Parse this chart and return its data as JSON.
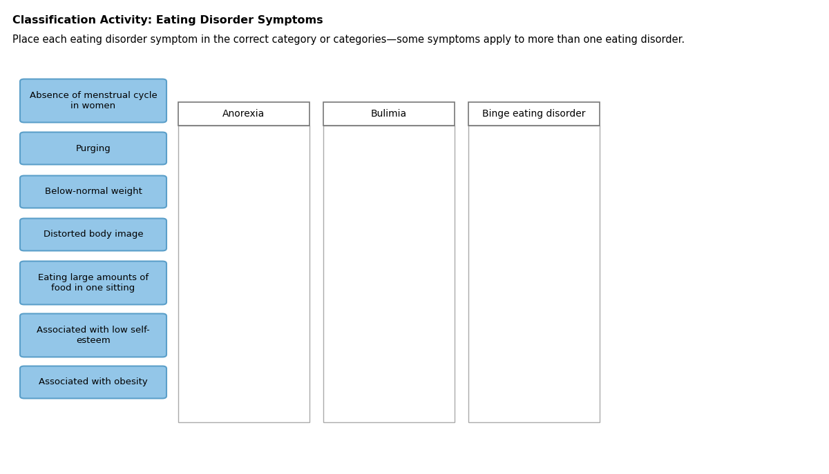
{
  "title": "Classification Activity: Eating Disorder Symptoms",
  "subtitle": "Place each eating disorder symptom in the correct category or categories—some symptoms apply to more than one eating disorder.",
  "symptom_buttons": [
    "Absence of menstrual cycle\nin women",
    "Purging",
    "Below-normal weight",
    "Distorted body image",
    "Eating large amounts of\nfood in one sitting",
    "Associated with low self-\nesteem",
    "Associated with obesity"
  ],
  "categories": [
    "Anorexia",
    "Bulimia",
    "Binge eating disorder"
  ],
  "button_color": "#93C6E8",
  "button_edge_color": "#5B9FC9",
  "category_header_color": "#ffffff",
  "category_box_color": "#ffffff",
  "category_border_color": "#777777",
  "body_border_color": "#aaaaaa",
  "bg_color": "#ffffff",
  "title_fontsize": 11.5,
  "subtitle_fontsize": 10.5,
  "button_fontsize": 9.5,
  "category_fontsize": 10,
  "fig_width": 12.0,
  "fig_height": 6.87,
  "dpi": 100
}
